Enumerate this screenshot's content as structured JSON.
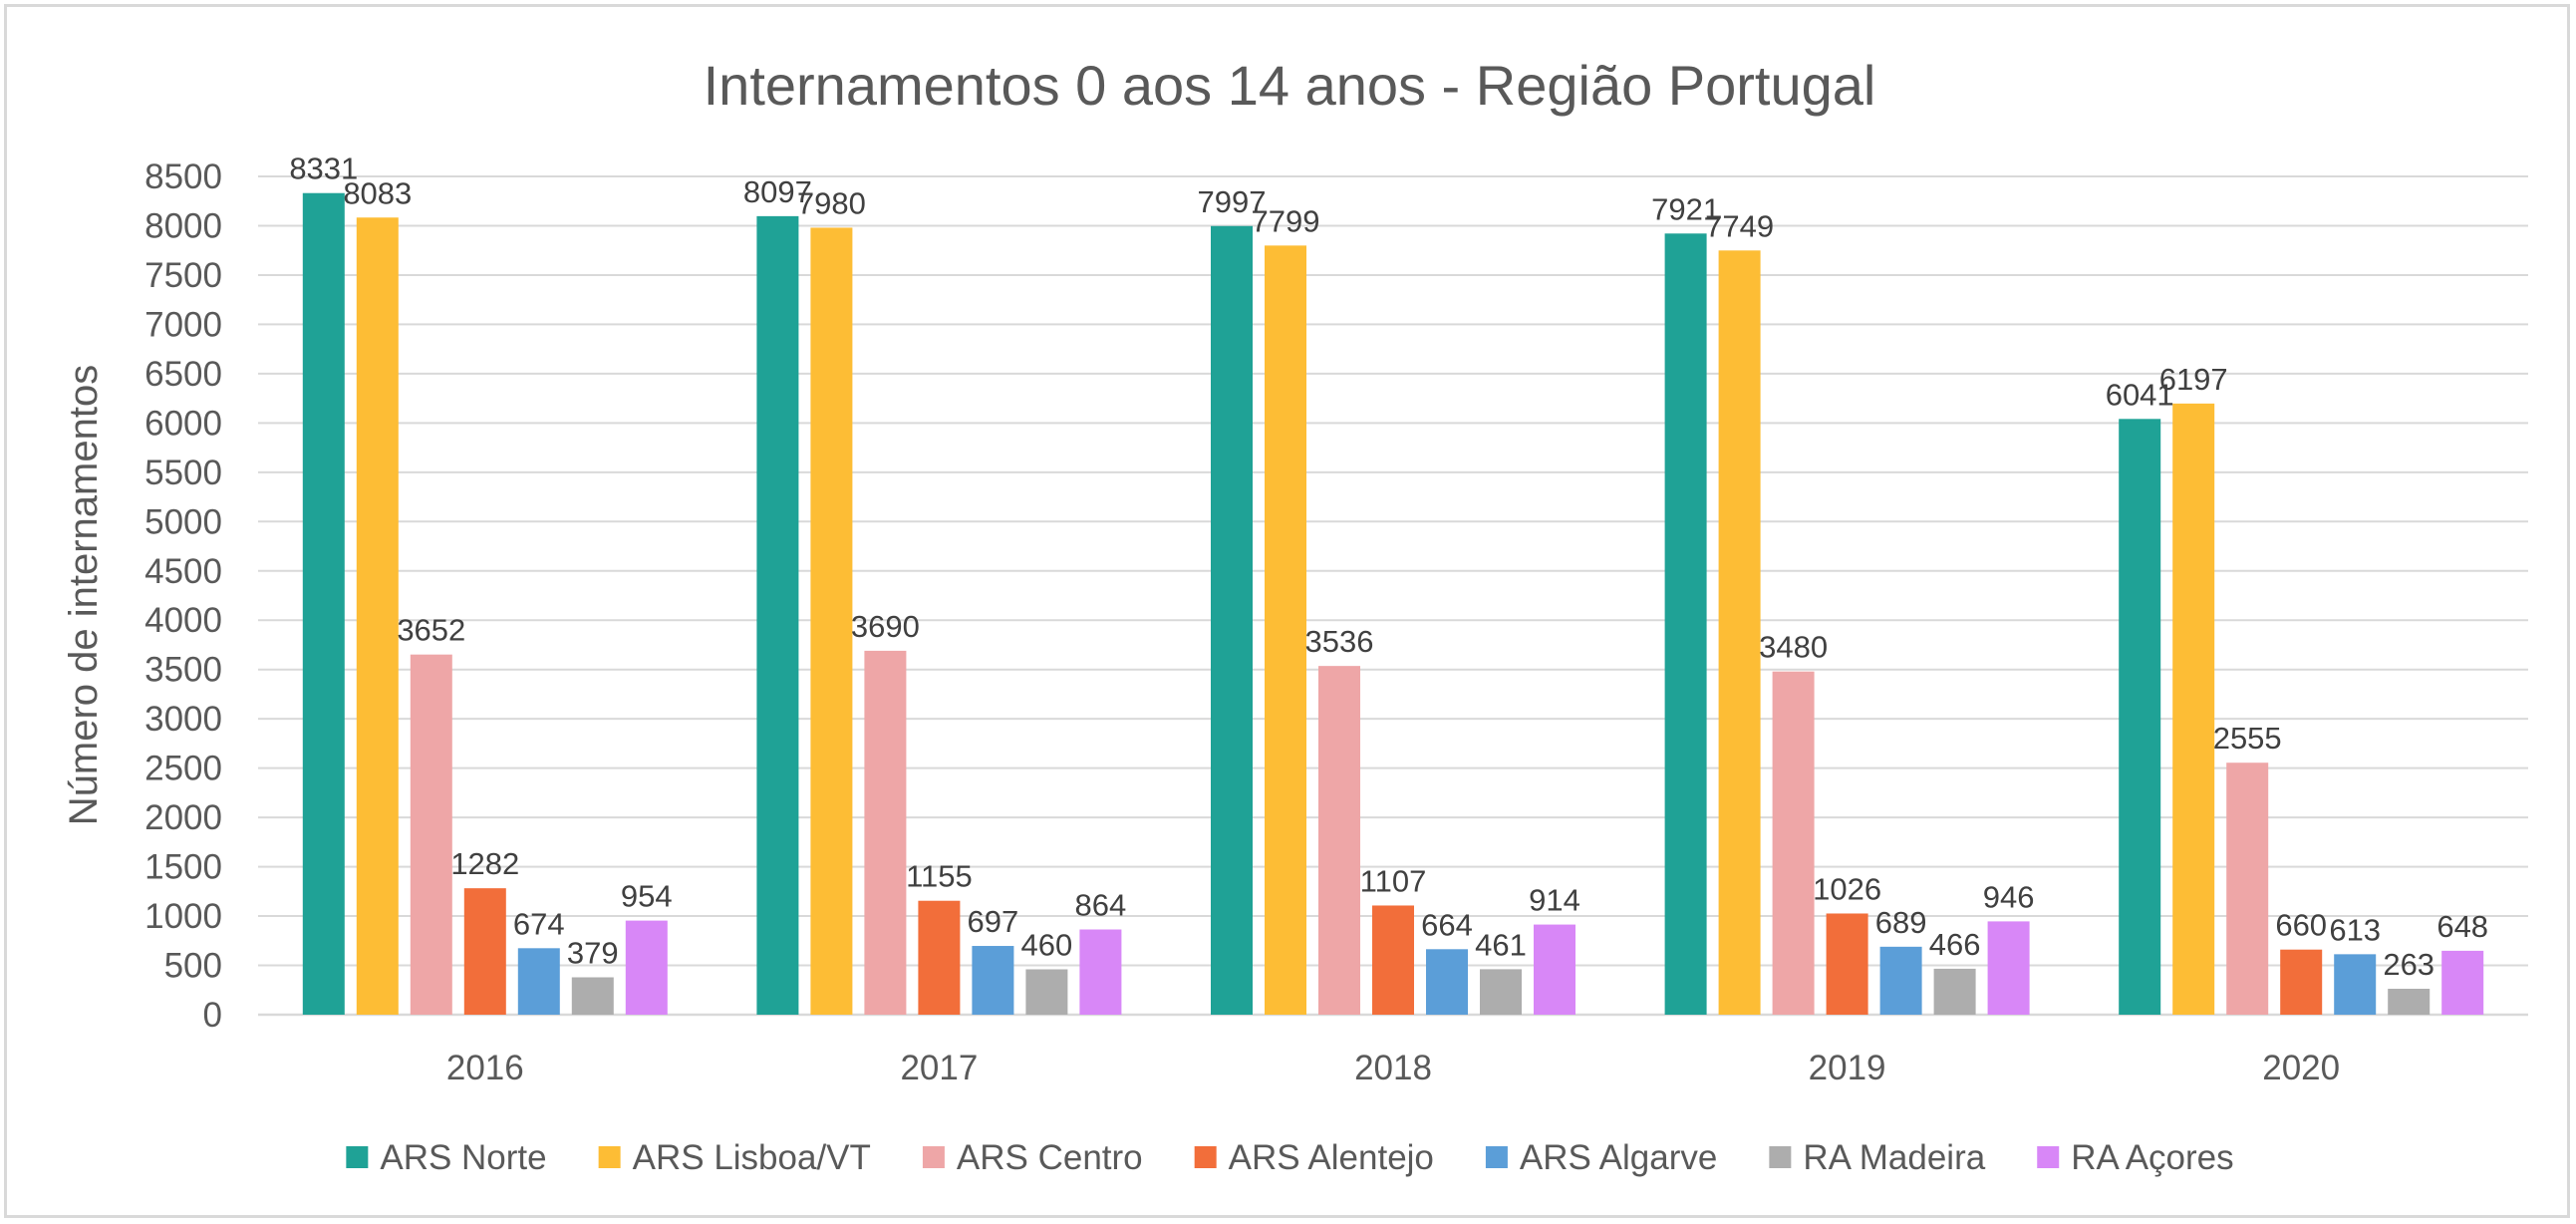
{
  "chart_data": {
    "type": "bar",
    "title": "Internamentos 0 aos 14 anos - Região Portugal",
    "xlabel": "",
    "ylabel": "Número de internamentos",
    "ylim": [
      0,
      8500
    ],
    "ytick_step": 500,
    "grid": true,
    "legend_position": "bottom",
    "categories": [
      "2016",
      "2017",
      "2018",
      "2019",
      "2020"
    ],
    "series": [
      {
        "name": "ARS Norte",
        "color": "#1fa296",
        "values": [
          8331,
          8097,
          7997,
          7921,
          6041
        ]
      },
      {
        "name": "ARS Lisboa/VT",
        "color": "#fdbd35",
        "values": [
          8083,
          7980,
          7799,
          7749,
          6197
        ]
      },
      {
        "name": "ARS Centro",
        "color": "#eea6a7",
        "values": [
          3652,
          3690,
          3536,
          3480,
          2555
        ]
      },
      {
        "name": "ARS Alentejo",
        "color": "#f26e3a",
        "values": [
          1282,
          1155,
          1107,
          1026,
          660
        ]
      },
      {
        "name": "ARS Algarve",
        "color": "#5b9ed8",
        "values": [
          674,
          697,
          664,
          689,
          613
        ]
      },
      {
        "name": "RA Madeira",
        "color": "#adadad",
        "values": [
          379,
          460,
          461,
          466,
          263
        ]
      },
      {
        "name": "RA Açores",
        "color": "#d887f7",
        "values": [
          954,
          864,
          914,
          946,
          648
        ]
      }
    ]
  }
}
